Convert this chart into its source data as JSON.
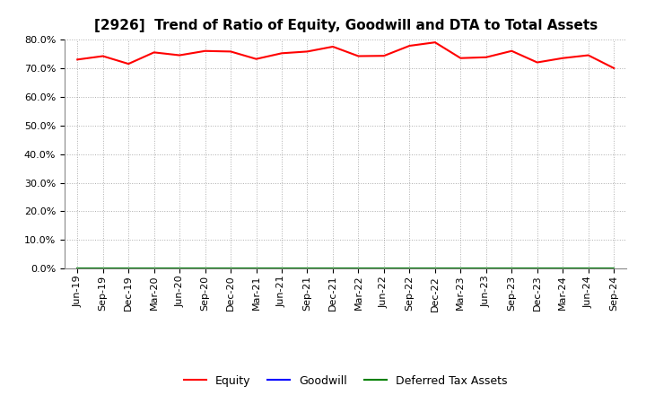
{
  "title": "[2926]  Trend of Ratio of Equity, Goodwill and DTA to Total Assets",
  "x_labels": [
    "Jun-19",
    "Sep-19",
    "Dec-19",
    "Mar-20",
    "Jun-20",
    "Sep-20",
    "Dec-20",
    "Mar-21",
    "Jun-21",
    "Sep-21",
    "Dec-21",
    "Mar-22",
    "Jun-22",
    "Sep-22",
    "Dec-22",
    "Mar-23",
    "Jun-23",
    "Sep-23",
    "Dec-23",
    "Mar-24",
    "Jun-24",
    "Sep-24"
  ],
  "equity": [
    73.0,
    74.2,
    71.5,
    75.5,
    74.5,
    76.0,
    75.8,
    73.2,
    75.2,
    75.8,
    77.5,
    74.2,
    74.3,
    77.8,
    79.0,
    73.5,
    73.8,
    76.0,
    72.0,
    73.5,
    74.5,
    70.0
  ],
  "goodwill": [
    0,
    0,
    0,
    0,
    0,
    0,
    0,
    0,
    0,
    0,
    0,
    0,
    0,
    0,
    0,
    0,
    0,
    0,
    0,
    0,
    0,
    0
  ],
  "dta": [
    0,
    0,
    0,
    0,
    0,
    0,
    0,
    0,
    0,
    0,
    0,
    0,
    0,
    0,
    0,
    0,
    0,
    0,
    0,
    0,
    0,
    0
  ],
  "equity_color": "#ff0000",
  "goodwill_color": "#0000ff",
  "dta_color": "#008000",
  "ylim": [
    0,
    80
  ],
  "yticks": [
    0,
    10,
    20,
    30,
    40,
    50,
    60,
    70,
    80
  ],
  "background_color": "#ffffff",
  "grid_color": "#999999",
  "title_fontsize": 11,
  "tick_fontsize": 8,
  "legend_fontsize": 9
}
